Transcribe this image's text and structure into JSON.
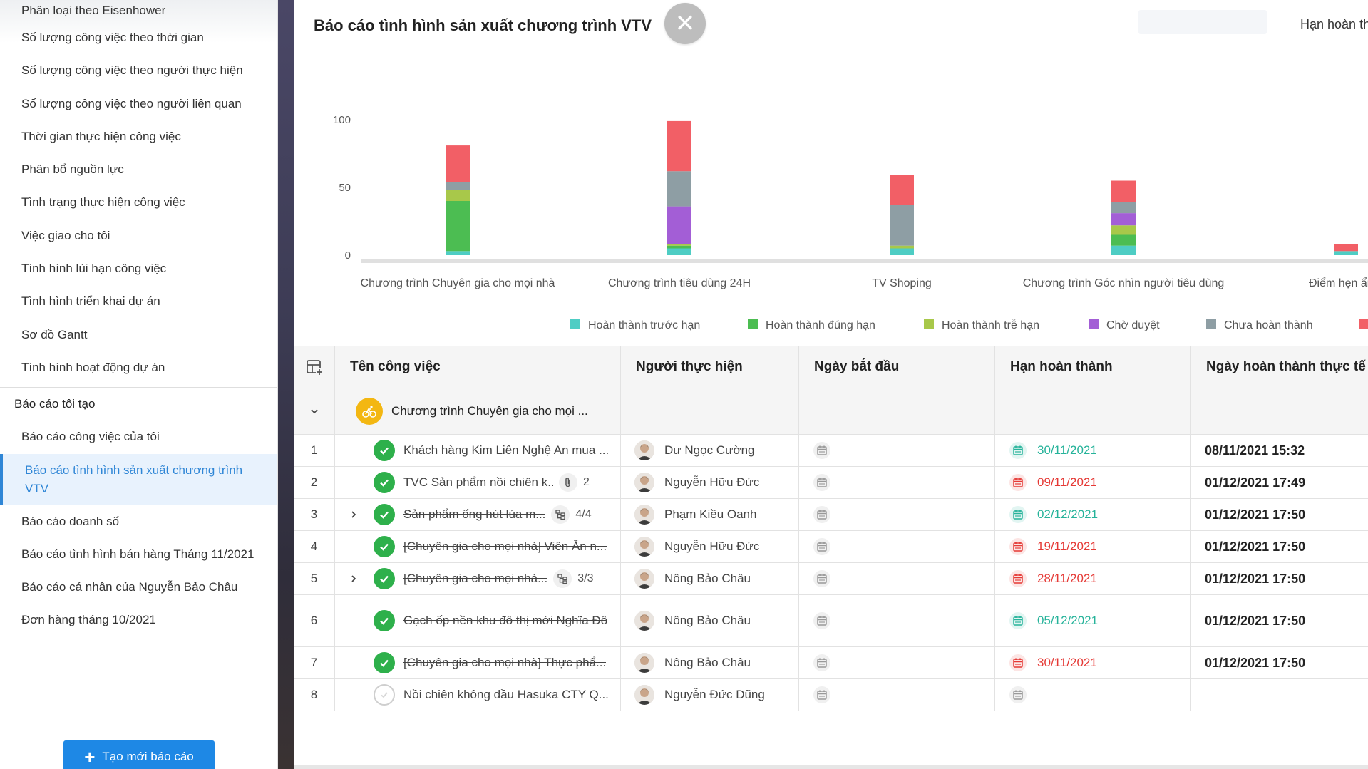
{
  "sidebar": {
    "items_top": [
      "Phân loại theo Eisenhower",
      "Số lượng công việc theo thời gian",
      "Số lượng công việc theo người thực hiện",
      "Số lượng công việc theo người liên quan",
      "Thời gian thực hiện công việc",
      "Phân bổ nguồn lực",
      "Tình trạng thực hiện công việc",
      "Việc giao cho tôi",
      "Tình hình lùi hạn công việc",
      "Tình hình triển khai dự án",
      "Sơ đồ Gantt",
      "Tình hình hoạt động dự án"
    ],
    "group_title": "Báo cáo tôi tạo",
    "items_mine": [
      "Báo cáo công việc của tôi",
      "Báo cáo tình hình sản xuất chương trình VTV",
      "Báo cáo doanh số",
      "Báo cáo tình hình bán hàng Tháng 11/2021",
      "Báo cáo cá nhân của Nguyễn Bảo Châu",
      "Đơn hàng tháng 10/2021"
    ],
    "active_index": 1,
    "create_button": "Tạo mới báo cáo"
  },
  "header": {
    "title": "Báo cáo tình hình sản xuất chương trình VTV",
    "right_label": "Hạn hoàn th"
  },
  "chart_data": {
    "type": "bar",
    "stacked": true,
    "categories": [
      "Chương trình Chuyên gia cho mọi nhà",
      "Chương trình tiêu dùng 24H",
      "TV Shoping",
      "Chương trình Góc nhìn người tiêu dùng",
      "Điểm hẹn ẩm t"
    ],
    "ylim": [
      0,
      100
    ],
    "yticks": [
      "0",
      "50",
      "100"
    ],
    "series": [
      {
        "name": "Hoàn thành trước hạn",
        "color": "#4ecdc4",
        "values": [
          3,
          5,
          5,
          7,
          3
        ]
      },
      {
        "name": "Hoàn thành đúng hạn",
        "color": "#4cbd52",
        "values": [
          37,
          2,
          0,
          8,
          0
        ]
      },
      {
        "name": "Hoàn thành trễ hạn",
        "color": "#a8c84a",
        "values": [
          8,
          1,
          2,
          7,
          0
        ]
      },
      {
        "name": "Chờ duyệt",
        "color": "#a35ed6",
        "values": [
          0,
          28,
          0,
          9,
          0
        ]
      },
      {
        "name": "Chưa hoàn thành",
        "color": "#8e9ea4",
        "values": [
          6,
          26,
          30,
          8,
          0
        ]
      },
      {
        "name": "",
        "color": "#f25f66",
        "values": [
          27,
          37,
          22,
          16,
          5
        ]
      }
    ],
    "legend_position": "bottom"
  },
  "table": {
    "columns": [
      "Tên công việc",
      "Người thực hiện",
      "Ngày bắt đầu",
      "Hạn hoàn thành",
      "Ngày hoàn thành thực tế"
    ],
    "group": "Chương trình Chuyên gia cho mọi ...",
    "rows": [
      {
        "no": "1",
        "task": "Khách hàng Kim Liên Nghệ An mua ...",
        "done": true,
        "expand": false,
        "meta": "",
        "meta_icon": "",
        "person": "Dư Ngọc Cường",
        "deadline": "30/11/2021",
        "deadline_status": "ok",
        "completed": "08/11/2021 15:32"
      },
      {
        "no": "2",
        "task": "TVC Sản phẩm nồi chiên k...",
        "done": true,
        "expand": false,
        "meta": "2",
        "meta_icon": "paperclip-icon",
        "person": "Nguyễn Hữu Đức",
        "deadline": "09/11/2021",
        "deadline_status": "late",
        "completed": "01/12/2021 17:49"
      },
      {
        "no": "3",
        "task": "Sản phẩm ống hút lúa m...",
        "done": true,
        "expand": true,
        "meta": "4/4",
        "meta_icon": "subtask-icon",
        "person": "Phạm Kiều Oanh",
        "deadline": "02/12/2021",
        "deadline_status": "ok",
        "completed": "01/12/2021 17:50"
      },
      {
        "no": "4",
        "task": "[Chuyên gia cho mọi nhà] Viên Ăn n...",
        "done": true,
        "expand": false,
        "meta": "",
        "meta_icon": "",
        "person": "Nguyễn Hữu Đức",
        "deadline": "19/11/2021",
        "deadline_status": "late",
        "completed": "01/12/2021 17:50"
      },
      {
        "no": "5",
        "task": "[Chuyên gia cho mọi nhà...",
        "done": true,
        "expand": true,
        "meta": "3/3",
        "meta_icon": "subtask-icon",
        "person": "Nông Bảo Châu",
        "deadline": "28/11/2021",
        "deadline_status": "late",
        "completed": "01/12/2021 17:50"
      },
      {
        "no": "6",
        "task": "Gạch ốp nền khu đô thị mới Nghĩa Đô",
        "done": true,
        "expand": false,
        "meta": "",
        "meta_icon": "",
        "person": "Nông Bảo Châu",
        "deadline": "05/12/2021",
        "deadline_status": "ok",
        "completed": "01/12/2021 17:50"
      },
      {
        "no": "7",
        "task": "[Chuyên gia cho mọi nhà] Thực phẩ...",
        "done": true,
        "expand": false,
        "meta": "",
        "meta_icon": "",
        "person": "Nông Bảo Châu",
        "deadline": "30/11/2021",
        "deadline_status": "late",
        "completed": "01/12/2021 17:50"
      },
      {
        "no": "8",
        "task": "Nồi chiên không dầu Hasuka CTY Q...",
        "done": false,
        "expand": false,
        "meta": "",
        "meta_icon": "",
        "person": "Nguyễn Đức Dũng",
        "deadline": "",
        "deadline_status": "none",
        "completed": ""
      }
    ]
  }
}
